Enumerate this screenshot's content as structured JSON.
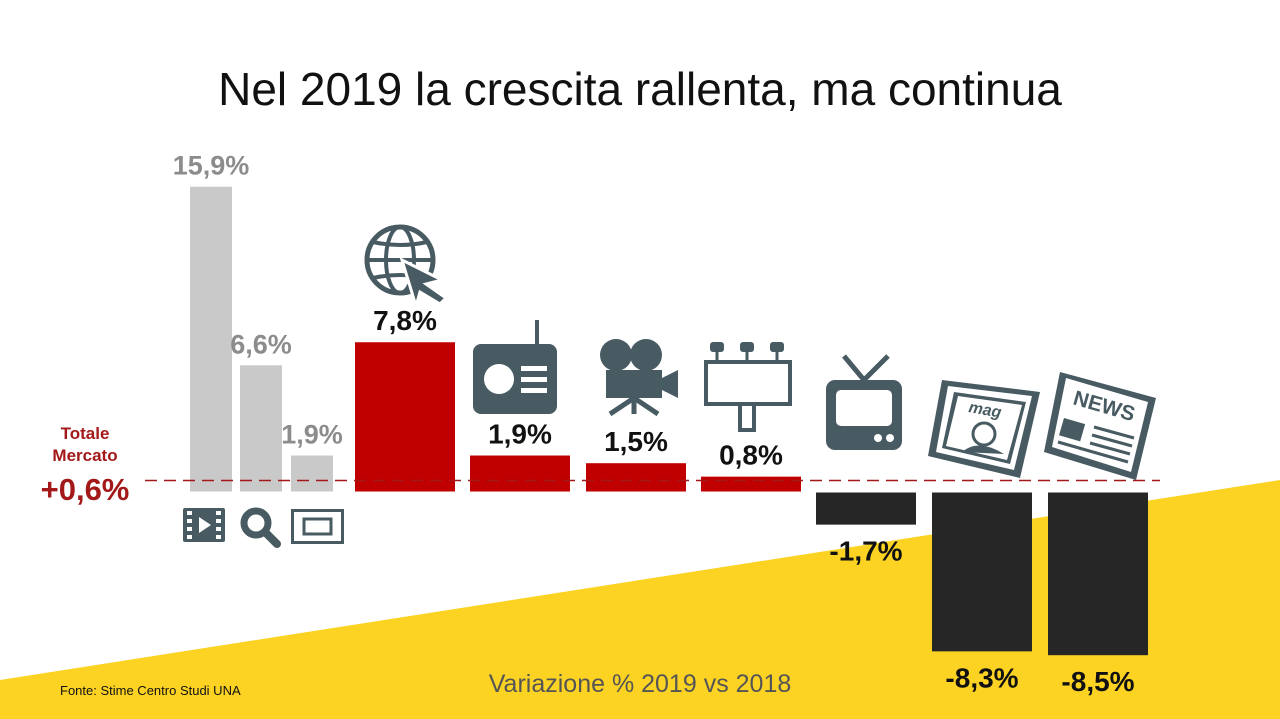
{
  "title": "Nel 2019 la crescita rallenta, ma continua",
  "subtitle": "Variazione % 2019 vs 2018",
  "source": "Fonte: Stime Centro Studi UNA",
  "total": {
    "line1": "Totale",
    "line2": "Mercato",
    "value": "+0,6%"
  },
  "colors": {
    "digital_sub": "#c9c9c9",
    "positive": "#c00000",
    "negative": "#262626",
    "icon": "#485b63",
    "accent_bg": "#fcd323",
    "total_line": "#a31919"
  },
  "chart_data": {
    "type": "bar",
    "title": "Nel 2019 la crescita rallenta, ma continua",
    "xlabel": "Variazione % 2019 vs 2018",
    "ylabel": "",
    "baseline": 0,
    "reference_line": {
      "value": 0.6,
      "label": "+0,6%"
    },
    "categories": [
      "video-icon",
      "search-icon",
      "display-icon",
      "internet-icon",
      "radio-icon",
      "cinema-icon",
      "outdoor-icon",
      "tv-icon",
      "magazine-icon",
      "newspaper-icon"
    ],
    "values": [
      15.9,
      6.6,
      1.9,
      7.8,
      1.9,
      1.5,
      0.8,
      -1.7,
      -8.3,
      -8.5
    ],
    "labels": [
      "15,9%",
      "6,6%",
      "1,9%",
      "7,8%",
      "1,9%",
      "1,5%",
      "0,8%",
      "-1,7%",
      "-8,3%",
      "-8,5%"
    ],
    "groups": [
      "digital-sub",
      "digital-sub",
      "digital-sub",
      "main",
      "main",
      "main",
      "main",
      "main",
      "main",
      "main"
    ]
  }
}
